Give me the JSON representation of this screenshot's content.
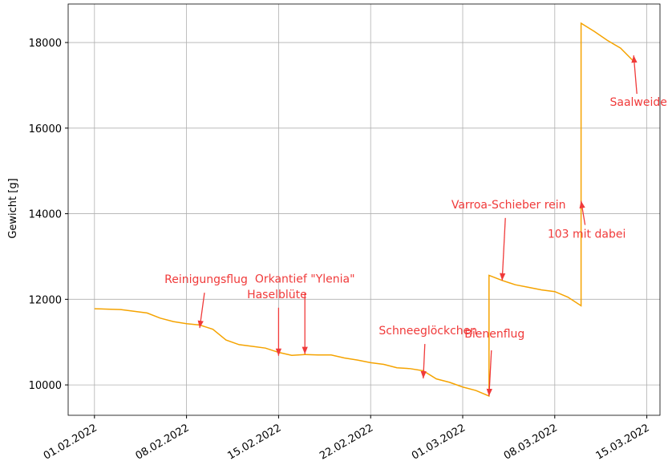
{
  "chart_data": {
    "type": "line",
    "ylabel": "Gewicht [g]",
    "x": [
      "2022-02-01",
      "2022-02-02",
      "2022-02-03",
      "2022-02-04",
      "2022-02-05",
      "2022-02-06",
      "2022-02-07",
      "2022-02-08",
      "2022-02-09",
      "2022-02-10",
      "2022-02-11",
      "2022-02-12",
      "2022-02-13",
      "2022-02-14",
      "2022-02-15",
      "2022-02-16",
      "2022-02-17",
      "2022-02-18",
      "2022-02-19",
      "2022-02-20",
      "2022-02-21",
      "2022-02-22",
      "2022-02-23",
      "2022-02-24",
      "2022-02-25",
      "2022-02-26",
      "2022-02-27",
      "2022-02-28",
      "2022-03-01",
      "2022-03-02",
      "2022-03-03",
      "2022-03-03",
      "2022-03-04",
      "2022-03-05",
      "2022-03-06",
      "2022-03-07",
      "2022-03-08",
      "2022-03-09",
      "2022-03-10",
      "2022-03-10",
      "2022-03-11",
      "2022-03-12",
      "2022-03-13",
      "2022-03-14"
    ],
    "series": [
      {
        "name": "Gewicht",
        "color": "#f5a300",
        "values": [
          11780,
          11770,
          11760,
          11720,
          11680,
          11560,
          11480,
          11430,
          11400,
          11300,
          11050,
          10940,
          10900,
          10860,
          10760,
          10690,
          10710,
          10700,
          10700,
          10630,
          10580,
          10520,
          10480,
          10400,
          10380,
          10330,
          10140,
          10060,
          9950,
          9870,
          9740,
          12560,
          12440,
          12340,
          12280,
          12220,
          12180,
          12050,
          11850,
          18450,
          18260,
          18050,
          17870,
          17560
        ]
      }
    ],
    "xlim": [
      "2022-01-30",
      "2022-03-16"
    ],
    "xticks": [
      {
        "value": "2022-02-01",
        "label": "01.02.2022"
      },
      {
        "value": "2022-02-08",
        "label": "08.02.2022"
      },
      {
        "value": "2022-02-15",
        "label": "15.02.2022"
      },
      {
        "value": "2022-02-22",
        "label": "22.02.2022"
      },
      {
        "value": "2022-03-01",
        "label": "01.03.2022"
      },
      {
        "value": "2022-03-08",
        "label": "08.03.2022"
      },
      {
        "value": "2022-03-15",
        "label": "15.03.2022"
      }
    ],
    "ylim": [
      9290,
      18900
    ],
    "yticks": [
      10000,
      12000,
      14000,
      16000,
      18000
    ],
    "grid": true,
    "annotations": [
      {
        "text": "Reinigungsflug",
        "x": "2022-02-09",
        "y": 11330
      },
      {
        "text": "Orkantief \"Ylenia\"",
        "x": "2022-02-17",
        "y": 10720
      },
      {
        "text": "Haselblüte",
        "x": "2022-02-15",
        "y": 10680
      },
      {
        "text": "Schneeglöckchen",
        "x": "2022-02-26",
        "y": 10150
      },
      {
        "text": "Bienenflug",
        "x": "2022-03-03",
        "y": 9740
      },
      {
        "text": "Varroa-Schieber rein",
        "x": "2022-03-04",
        "y": 12440
      },
      {
        "text": "103 mit dabei",
        "x": "2022-03-10",
        "y": 14300
      },
      {
        "text": "Saalweide",
        "x": "2022-03-14",
        "y": 17700
      }
    ]
  }
}
